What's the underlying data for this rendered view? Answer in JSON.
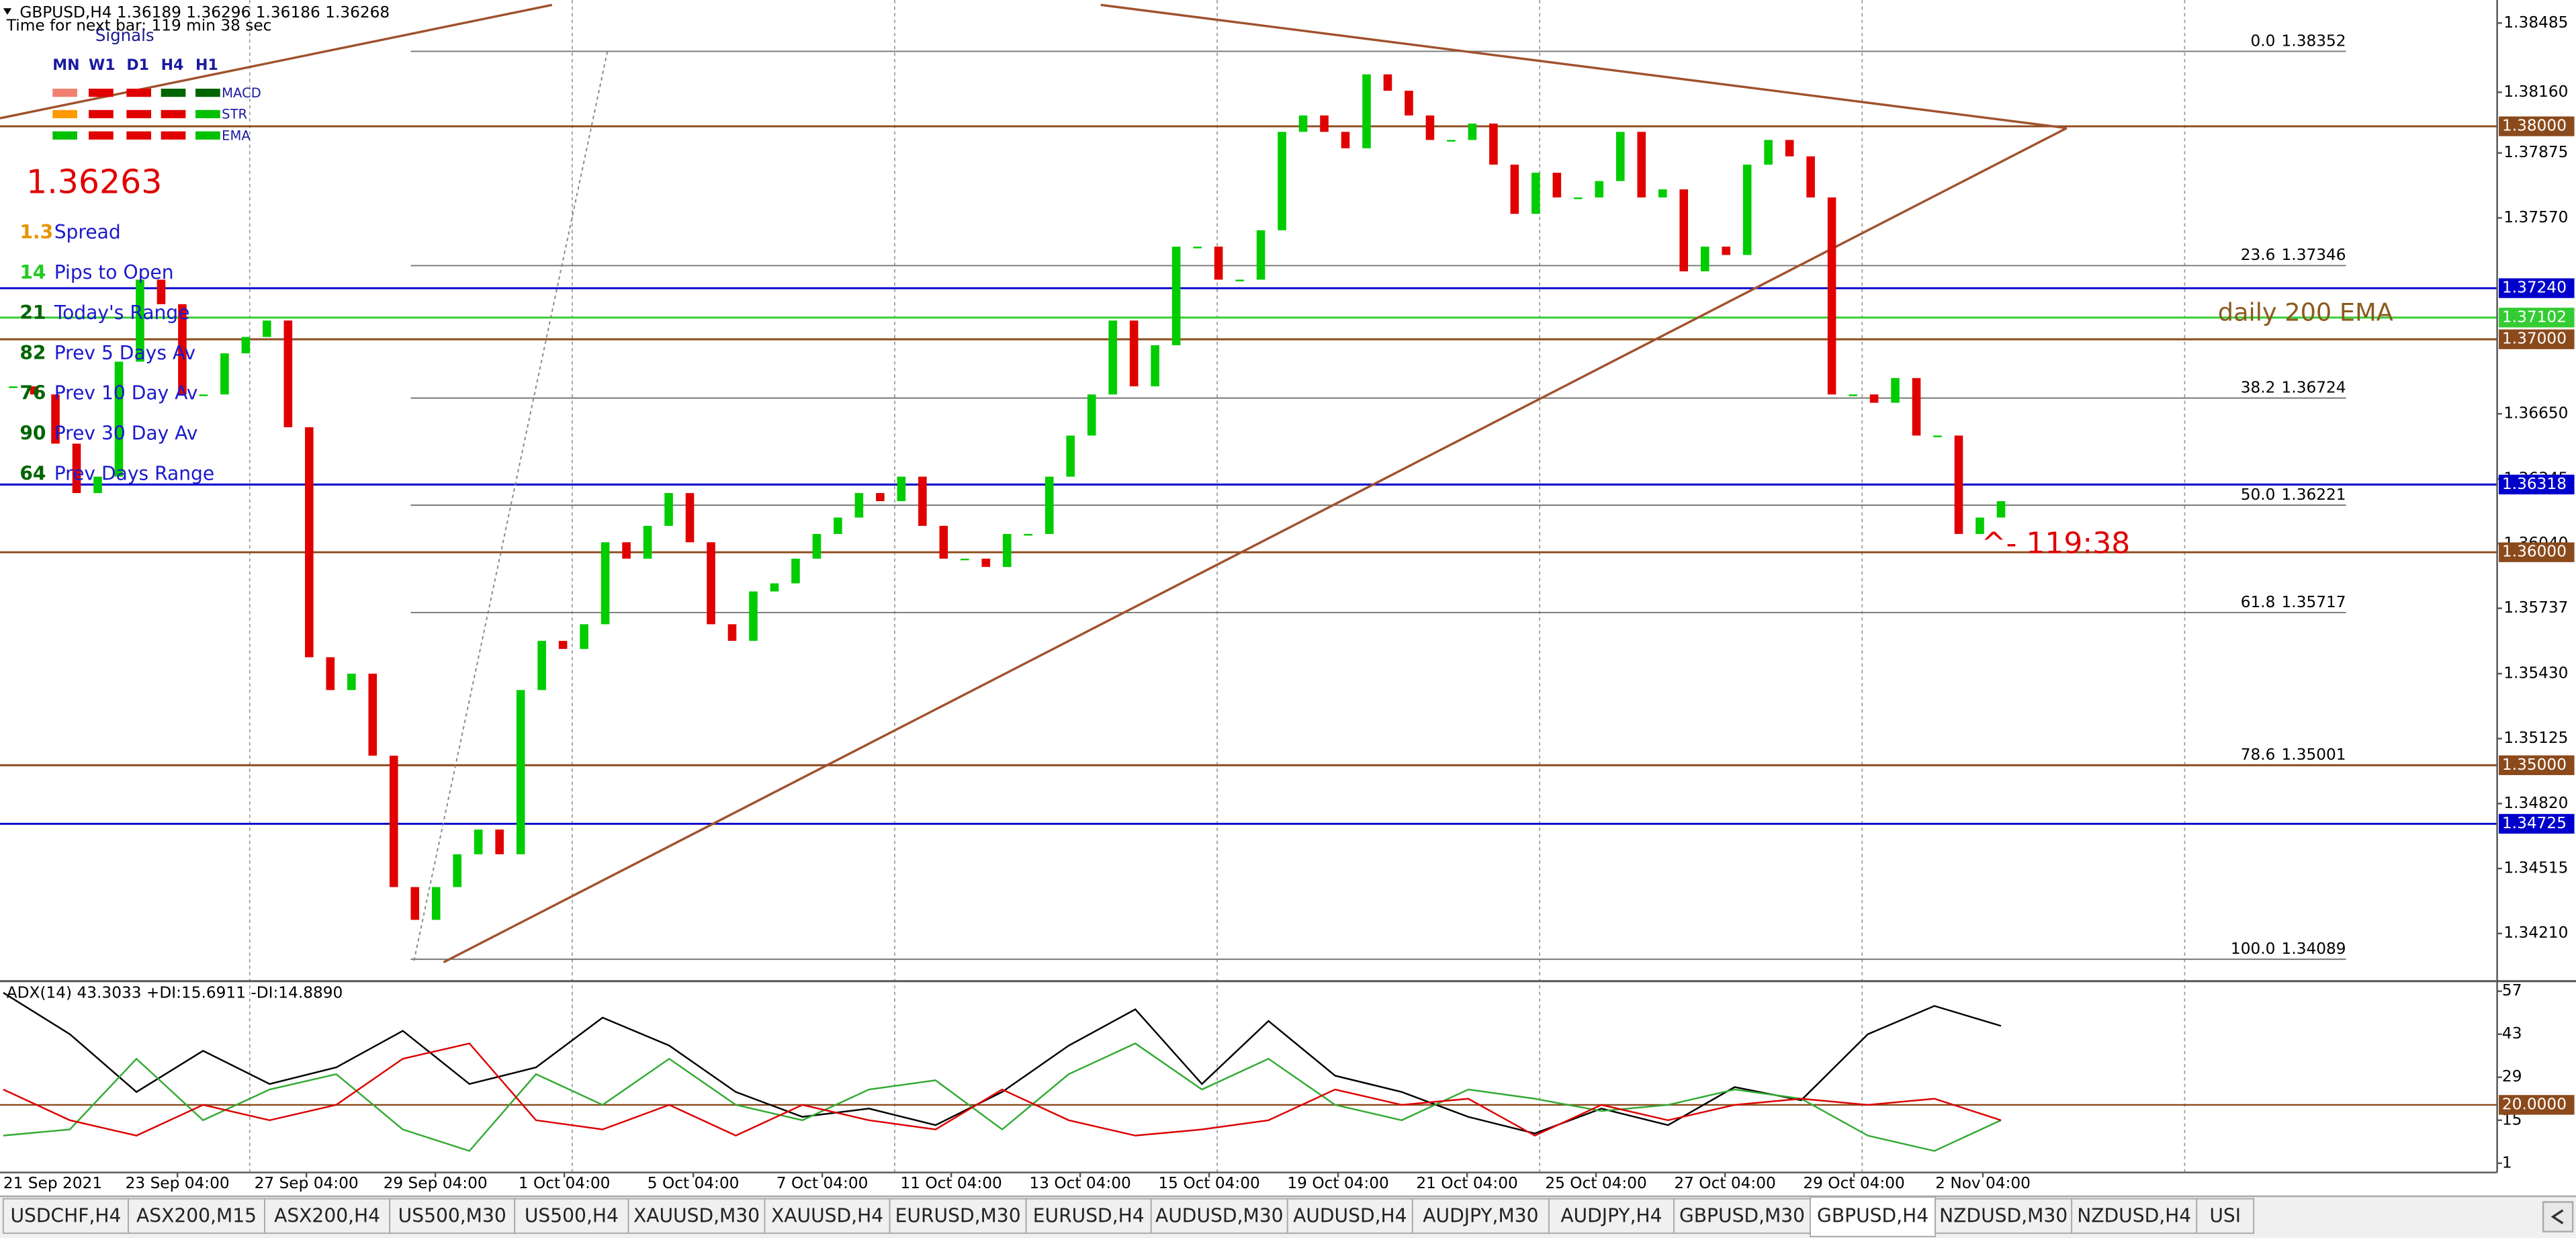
{
  "signals": {
    "title": "Signals",
    "timeframes": [
      "MN",
      "W1",
      "D1",
      "H4",
      "H1"
    ],
    "rows": [
      {
        "name": "MACD",
        "colors": [
          "#f08070",
          "#e00000",
          "#e00000",
          "#006400",
          "#006400"
        ]
      },
      {
        "name": "STR",
        "colors": [
          "#ff9900",
          "#e00000",
          "#e00000",
          "#e00000",
          "#00c000"
        ]
      },
      {
        "name": "EMA",
        "colors": [
          "#00c000",
          "#e00000",
          "#e00000",
          "#e00000",
          "#00c000"
        ]
      }
    ]
  },
  "price": "1.36263",
  "info": [
    {
      "value": 1.3,
      "label": "Spread",
      "color": "#e69500"
    },
    {
      "value": 14,
      "label": "Pips to Open",
      "color": "#22cc22"
    },
    {
      "value": 21,
      "label": "Today's Range",
      "color": "#006400"
    },
    {
      "value": 82,
      "label": "Prev 5 Days Av",
      "color": "#006400"
    },
    {
      "value": 76,
      "label": "Prev 10 Day Av",
      "color": "#006400"
    },
    {
      "value": 90,
      "label": "Prev 30 Day Av",
      "color": "#006400"
    },
    {
      "value": 64,
      "label": "Prev Days Range",
      "color": "#006400"
    }
  ],
  "chart_data": [
    {
      "type": "candlestick",
      "title": "GBPUSD,H4  1.36189 1.36296 1.36186 1.36268",
      "subtitle": "Time for next bar: 119 min 38 sec",
      "up_color": "#00cc00",
      "down_color": "#e00000",
      "values": [
        1.36779,
        1.36741,
        1.3651,
        1.36278,
        1.36355,
        1.36895,
        1.3728,
        1.37165,
        1.36741,
        1.36741,
        1.36934,
        1.37011,
        1.37088,
        1.36587,
        1.35507,
        1.35353,
        1.3543,
        1.35045,
        1.34428,
        1.34274,
        1.34428,
        1.34582,
        1.34698,
        1.34582,
        1.35353,
        1.35584,
        1.35546,
        1.35662,
        1.36047,
        1.3597,
        1.36124,
        1.36278,
        1.36047,
        1.35662,
        1.35584,
        1.35816,
        1.35854,
        1.3597,
        1.36086,
        1.36163,
        1.36278,
        1.3624,
        1.36355,
        1.36124,
        1.3597,
        1.3597,
        1.35931,
        1.36086,
        1.36086,
        1.36355,
        1.36548,
        1.36741,
        1.37088,
        1.36779,
        1.36972,
        1.37435,
        1.37435,
        1.3728,
        1.3728,
        1.37512,
        1.37974,
        1.38051,
        1.37974,
        1.37897,
        1.38244,
        1.38167,
        1.38051,
        1.37936,
        1.37936,
        1.38013,
        1.3782,
        1.37589,
        1.37782,
        1.37666,
        1.37666,
        1.37743,
        1.37974,
        1.37666,
        1.37704,
        1.37319,
        1.37435,
        1.37396,
        1.3782,
        1.37936,
        1.37859,
        1.37666,
        1.36741,
        1.36741,
        1.36702,
        1.36818,
        1.36548,
        1.36548,
        1.36086,
        1.36163,
        1.3624
      ],
      "x_labels": [
        "21 Sep 2021",
        "23 Sep 04:00",
        "27 Sep 04:00",
        "29 Sep 04:00",
        "1 Oct 04:00",
        "5 Oct 04:00",
        "7 Oct 04:00",
        "11 Oct 04:00",
        "13 Oct 04:00",
        "15 Oct 04:00",
        "19 Oct 04:00",
        "21 Oct 04:00",
        "25 Oct 04:00",
        "27 Oct 04:00",
        "29 Oct 04:00",
        "2 Nov 04:00"
      ],
      "ylim": [
        1.3399,
        1.3857
      ],
      "yticks": [
        {
          "value": 1.38485,
          "label": "1.38485"
        },
        {
          "value": 1.3816,
          "label": "1.38160"
        },
        {
          "value": 1.37875,
          "label": "1.37875"
        },
        {
          "value": 1.3757,
          "label": "1.37570"
        },
        {
          "value": 1.3665,
          "label": "1.36650"
        },
        {
          "value": 1.36345,
          "label": "1.36345"
        },
        {
          "value": 1.3604,
          "label": "1.36040"
        },
        {
          "value": 1.35737,
          "label": "1.35737"
        },
        {
          "value": 1.3543,
          "label": "1.35430"
        },
        {
          "value": 1.35125,
          "label": "1.35125"
        },
        {
          "value": 1.3482,
          "label": "1.34820"
        },
        {
          "value": 1.34515,
          "label": "1.34515"
        },
        {
          "value": 1.3421,
          "label": "1.34210"
        }
      ],
      "levels": [
        {
          "value": 1.38,
          "label": "1.38000",
          "color": "#8b4a1c"
        },
        {
          "value": 1.3724,
          "label": "1.37240",
          "color": "#0000cc"
        },
        {
          "value": 1.37102,
          "label": "1.37102",
          "color": "#33cc33"
        },
        {
          "value": 1.37,
          "label": "1.37000",
          "color": "#8b4a1c"
        },
        {
          "value": 1.36318,
          "label": "1.36318",
          "color": "#0000cc"
        },
        {
          "value": 1.36,
          "label": "1.36000",
          "color": "#8b4a1c"
        },
        {
          "value": 1.35,
          "label": "1.35000",
          "color": "#8b4a1c"
        },
        {
          "value": 1.34725,
          "label": "1.34725",
          "color": "#0000cc"
        }
      ],
      "fib": [
        {
          "ratio": "0.0",
          "value": 1.38352
        },
        {
          "ratio": "23.6",
          "value": 1.37346
        },
        {
          "ratio": "38.2",
          "value": 1.36724
        },
        {
          "ratio": "50.0",
          "value": 1.36221
        },
        {
          "ratio": "61.8",
          "value": 1.35717
        },
        {
          "ratio": "78.6",
          "value": 1.35001
        },
        {
          "ratio": "100.0",
          "value": 1.34089
        }
      ],
      "annotations": [
        "daily 200 EMA",
        "^- 119:38"
      ]
    },
    {
      "type": "line",
      "title": "ADX(14) 43.3033 +DI:15.6911 -DI:14.8890",
      "ylim": [
        -2,
        60
      ],
      "yticks": [
        57,
        43,
        29,
        15,
        1
      ],
      "level": {
        "value": 20,
        "label": "20.0000",
        "color": "#8b4a1c"
      },
      "series": [
        {
          "color": "#000000",
          "values": [
            56.5,
            43.0,
            24.2,
            37.6,
            26.8,
            32.2,
            44.1,
            26.8,
            32.2,
            48.4,
            39.3,
            24.2,
            16.1,
            18.8,
            13.4,
            24.2,
            39.3,
            51.1,
            26.8,
            47.3,
            29.5,
            24.2,
            16.1,
            10.7,
            18.8,
            13.4,
            25.8,
            21.5,
            43.0,
            52.2,
            45.7
          ]
        },
        {
          "color": "#33aa33",
          "values": [
            10,
            12,
            35,
            15,
            25,
            30,
            12,
            5,
            30,
            20,
            35,
            20,
            15,
            25,
            28,
            12,
            30,
            40,
            25,
            35,
            20,
            15,
            25,
            22,
            18,
            20,
            25,
            22,
            10,
            5,
            15
          ]
        },
        {
          "color": "#dd0000",
          "values": [
            25,
            15,
            10,
            20,
            15,
            20,
            35,
            40,
            15,
            12,
            20,
            10,
            20,
            15,
            12,
            25,
            15,
            10,
            12,
            15,
            25,
            20,
            22,
            10,
            20,
            15,
            20,
            22,
            20,
            22,
            15
          ]
        }
      ]
    }
  ],
  "tabs": {
    "active": 14,
    "items": [
      "USDCHF,H4",
      "ASX200,M15",
      "ASX200,H4",
      "US500,M30",
      "US500,H4",
      "XAUUSD,M30",
      "XAUUSD,H4",
      "EURUSD,M30",
      "EURUSD,H4",
      "AUDUSD,M30",
      "AUDUSD,H4",
      "AUDJPY,M30",
      "AUDJPY,H4",
      "GBPUSD,M30",
      "GBPUSD,H4",
      "NZDUSD,M30",
      "NZDUSD,H4",
      "USI"
    ]
  }
}
